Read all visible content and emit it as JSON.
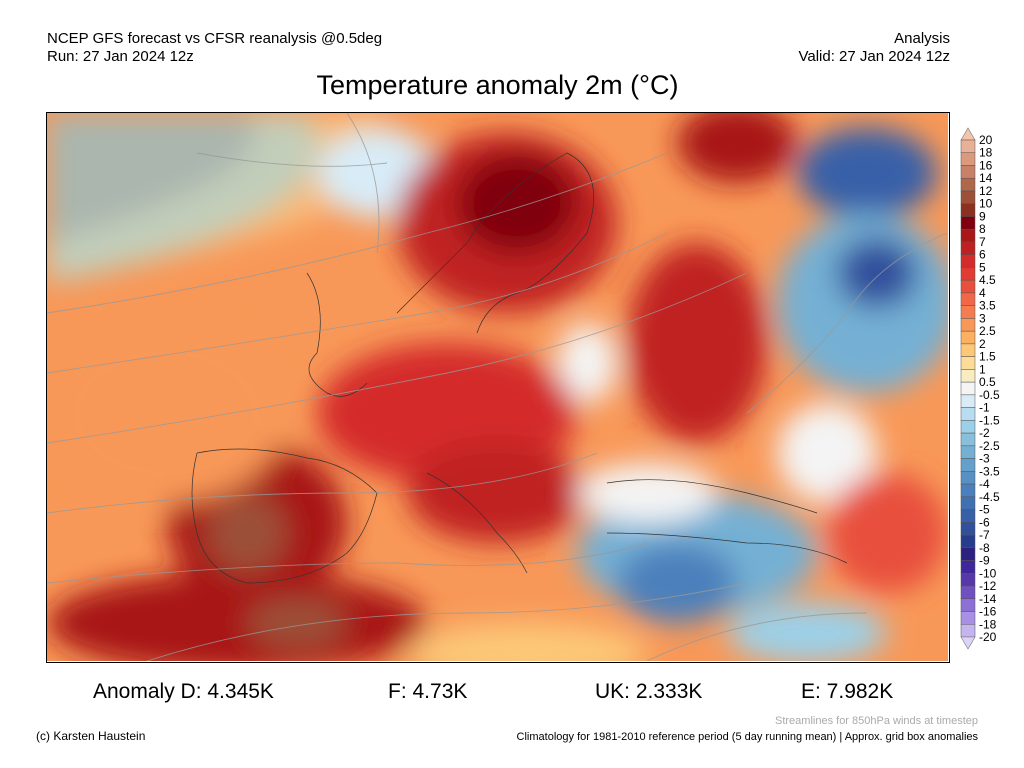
{
  "header": {
    "model_line": "NCEP GFS forecast vs CFSR reanalysis @0.5deg",
    "run_line": "Run: 27 Jan 2024 12z",
    "type": "Analysis",
    "valid_line": "Valid: 27 Jan 2024 12z",
    "title": "Temperature anomaly 2m (°C)"
  },
  "legend": {
    "labels": [
      "20",
      "18",
      "16",
      "14",
      "12",
      "10",
      "9",
      "8",
      "7",
      "6",
      "5",
      "4.5",
      "4",
      "3.5",
      "3",
      "2.5",
      "2",
      "1.5",
      "1",
      "0.5",
      "-0.5",
      "-1",
      "-1.5",
      "-2",
      "-2.5",
      "-3",
      "-3.5",
      "-4",
      "-4.5",
      "-5",
      "-6",
      "-7",
      "-8",
      "-9",
      "-10",
      "-12",
      "-14",
      "-16",
      "-18",
      "-20"
    ],
    "colors": [
      "#f2c4aa",
      "#e8b094",
      "#dc9a7c",
      "#c88068",
      "#b06848",
      "#9c5038",
      "#8c3020",
      "#800010",
      "#a81818",
      "#c02020",
      "#d42c2c",
      "#e03c34",
      "#e8503c",
      "#f06848",
      "#f47c50",
      "#f89858",
      "#fcb060",
      "#fcc878",
      "#fcdc98",
      "#f8ecc0",
      "#f4f4f4",
      "#d8ecf8",
      "#b8dcf0",
      "#9cd0e8",
      "#88c0dc",
      "#74b0d4",
      "#64a0cc",
      "#5890c4",
      "#4c80bc",
      "#4070b0",
      "#3860a8",
      "#30509c",
      "#283c8c",
      "#2c2080",
      "#40289c",
      "#5838a8",
      "#7050c0",
      "#8c70d4",
      "#a890e4",
      "#c4b4f0",
      "#dcd4f8"
    ]
  },
  "stats": [
    {
      "label": "Anomaly D: 4.345K"
    },
    {
      "label": "F: 4.73K"
    },
    {
      "label": "UK: 2.333K"
    },
    {
      "label": "E: 7.982K"
    }
  ],
  "footer": {
    "credit": "(c) Karsten Haustein",
    "streamlines": "Streamlines for 850hPa winds at timestep",
    "climatology": "Climatology for 1981-2010 reference period (5 day running mean) | Approx. grid box anomalies"
  }
}
